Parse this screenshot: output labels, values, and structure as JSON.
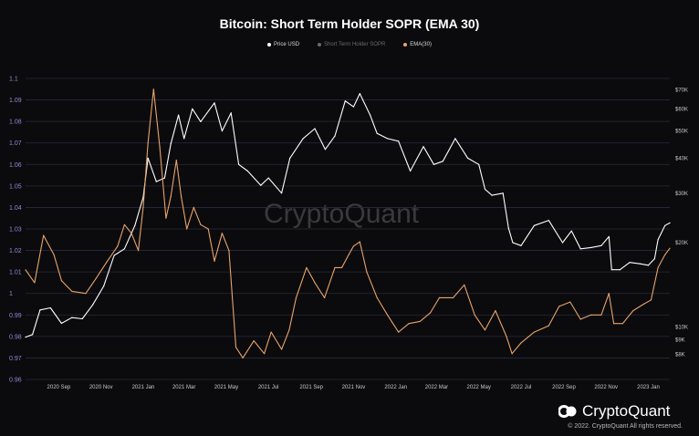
{
  "header": {
    "title": "Bitcoin: Short Term Holder SOPR (EMA 30)"
  },
  "legend": [
    {
      "label": "Price USD",
      "color": "#ffffff"
    },
    {
      "label": "Short Term Holder SOPR",
      "color": "#6a6a6a"
    },
    {
      "label": "EMA(30)",
      "color": "#e8a46a"
    }
  ],
  "watermark": "CryptoQuant",
  "brand": {
    "name": "CryptoQuant"
  },
  "footer": {
    "copyright": "© 2022. CryptoQuant All rights reserved."
  },
  "chart_data": {
    "type": "line",
    "title": "Bitcoin: Short Term Holder SOPR (EMA 30)",
    "x_tick_labels": [
      "2020 Sep",
      "2020 Nov",
      "2021 Jan",
      "2021 Mar",
      "2021 May",
      "2021 Jul",
      "2021 Sep",
      "2021 Nov",
      "2022 Jan",
      "2022 Mar",
      "2022 May",
      "2022 Jul",
      "2022 Sep",
      "2022 Nov",
      "2023 Jan"
    ],
    "x_range": [
      "2020-07-15",
      "2023-02-01"
    ],
    "left_axis": {
      "label": "",
      "range": [
        0.96,
        1.1
      ],
      "ticks": [
        1.1,
        1.09,
        1.08,
        1.07,
        1.06,
        1.05,
        1.04,
        1.03,
        1.02,
        1.01,
        1,
        0.99,
        0.98,
        0.97,
        0.96
      ]
    },
    "right_axis": {
      "label": "",
      "scale": "log",
      "tick_values": [
        70000,
        60000,
        50000,
        40000,
        30000,
        20000,
        10000,
        9000,
        8000
      ],
      "tick_labels": [
        "$70K",
        "$60K",
        "$50K",
        "$40K",
        "$30K",
        "$20K",
        "$10K",
        "$9K",
        "$8K"
      ]
    },
    "grid": true,
    "legend_position": "top-center",
    "series": [
      {
        "name": "Price USD",
        "axis": "right",
        "color": "#ffffff",
        "x": [
          "2020-07-15",
          "2020-07-25",
          "2020-08-05",
          "2020-08-20",
          "2020-09-05",
          "2020-09-20",
          "2020-10-05",
          "2020-10-20",
          "2020-11-05",
          "2020-11-20",
          "2020-12-05",
          "2020-12-20",
          "2021-01-01",
          "2021-01-08",
          "2021-01-20",
          "2021-02-01",
          "2021-02-10",
          "2021-02-21",
          "2021-03-01",
          "2021-03-13",
          "2021-03-25",
          "2021-04-14",
          "2021-04-25",
          "2021-05-08",
          "2021-05-19",
          "2021-06-01",
          "2021-06-20",
          "2021-07-01",
          "2021-07-20",
          "2021-08-01",
          "2021-08-20",
          "2021-09-06",
          "2021-09-21",
          "2021-10-05",
          "2021-10-20",
          "2021-11-01",
          "2021-11-10",
          "2021-11-25",
          "2021-12-05",
          "2021-12-20",
          "2022-01-05",
          "2022-01-22",
          "2022-02-10",
          "2022-02-25",
          "2022-03-10",
          "2022-03-28",
          "2022-04-15",
          "2022-05-01",
          "2022-05-10",
          "2022-05-20",
          "2022-06-05",
          "2022-06-13",
          "2022-06-19",
          "2022-07-01",
          "2022-07-20",
          "2022-08-10",
          "2022-08-30",
          "2022-09-12",
          "2022-09-25",
          "2022-10-10",
          "2022-10-25",
          "2022-11-05",
          "2022-11-09",
          "2022-11-21",
          "2022-12-05",
          "2022-12-20",
          "2023-01-01",
          "2023-01-10",
          "2023-01-15",
          "2023-01-25",
          "2023-02-01"
        ],
        "values": [
          9200,
          9400,
          11500,
          11700,
          10300,
          10800,
          10700,
          12000,
          14000,
          18000,
          19000,
          23000,
          29000,
          40000,
          33000,
          34000,
          45000,
          57000,
          47000,
          60000,
          54000,
          63000,
          50000,
          58000,
          38000,
          36000,
          32000,
          34000,
          30000,
          40000,
          47000,
          51000,
          43000,
          48000,
          64000,
          61000,
          68000,
          57000,
          49000,
          47000,
          46000,
          36000,
          44000,
          38000,
          39000,
          47000,
          40000,
          38000,
          31000,
          29500,
          30000,
          22500,
          20000,
          19500,
          23000,
          24000,
          20000,
          22000,
          19000,
          19200,
          19500,
          21000,
          16000,
          16000,
          17000,
          16800,
          16600,
          17500,
          20500,
          23000,
          23500
        ],
        "tick_labels": [],
        "note": ""
      },
      {
        "name": "EMA(30)",
        "axis": "left",
        "color": "#e8a46a",
        "x": [
          "2020-07-15",
          "2020-07-28",
          "2020-08-10",
          "2020-08-25",
          "2020-09-05",
          "2020-09-20",
          "2020-10-10",
          "2020-10-25",
          "2020-11-10",
          "2020-11-25",
          "2020-12-05",
          "2020-12-15",
          "2020-12-25",
          "2021-01-01",
          "2021-01-08",
          "2021-01-16",
          "2021-01-25",
          "2021-02-03",
          "2021-02-10",
          "2021-02-18",
          "2021-02-25",
          "2021-03-05",
          "2021-03-15",
          "2021-03-25",
          "2021-04-05",
          "2021-04-14",
          "2021-04-25",
          "2021-05-05",
          "2021-05-15",
          "2021-05-25",
          "2021-06-10",
          "2021-06-25",
          "2021-07-05",
          "2021-07-20",
          "2021-07-31",
          "2021-08-10",
          "2021-08-25",
          "2021-09-06",
          "2021-09-20",
          "2021-10-05",
          "2021-10-15",
          "2021-10-25",
          "2021-11-01",
          "2021-11-10",
          "2021-11-20",
          "2021-12-05",
          "2021-12-20",
          "2022-01-05",
          "2022-01-20",
          "2022-02-05",
          "2022-02-20",
          "2022-03-05",
          "2022-03-25",
          "2022-04-10",
          "2022-04-25",
          "2022-05-10",
          "2022-05-25",
          "2022-06-10",
          "2022-06-18",
          "2022-07-01",
          "2022-07-20",
          "2022-08-10",
          "2022-08-25",
          "2022-09-10",
          "2022-09-25",
          "2022-10-10",
          "2022-10-25",
          "2022-11-05",
          "2022-11-12",
          "2022-11-25",
          "2022-12-10",
          "2022-12-25",
          "2023-01-05",
          "2023-01-15",
          "2023-01-25",
          "2023-02-01"
        ],
        "values": [
          1.011,
          1.005,
          1.027,
          1.018,
          1.006,
          1.001,
          1.0,
          1.007,
          1.015,
          1.022,
          1.032,
          1.028,
          1.02,
          1.04,
          1.07,
          1.095,
          1.068,
          1.035,
          1.045,
          1.062,
          1.045,
          1.03,
          1.04,
          1.032,
          1.03,
          1.015,
          1.028,
          1.02,
          0.975,
          0.97,
          0.978,
          0.972,
          0.982,
          0.974,
          0.983,
          0.998,
          1.012,
          1.005,
          0.998,
          1.012,
          1.012,
          1.018,
          1.022,
          1.024,
          1.01,
          0.998,
          0.99,
          0.982,
          0.986,
          0.987,
          0.991,
          0.998,
          0.998,
          1.004,
          0.99,
          0.983,
          0.992,
          0.98,
          0.972,
          0.977,
          0.982,
          0.985,
          0.994,
          0.996,
          0.988,
          0.99,
          0.99,
          1.0,
          0.986,
          0.986,
          0.992,
          0.995,
          0.997,
          1.012,
          1.018,
          1.021
        ]
      }
    ]
  }
}
